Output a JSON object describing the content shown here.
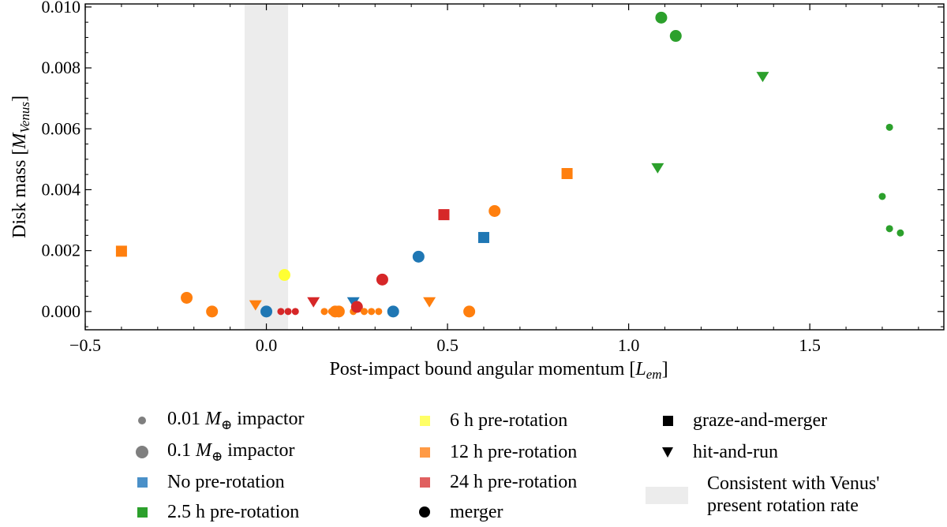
{
  "chart_data": {
    "type": "scatter",
    "title": "",
    "xlabel": "Post-impact bound angular momentum [",
    "xlabel_symbol": "L",
    "xlabel_sub": "em",
    "xlabel_end": "]",
    "ylabel": "Disk mass [",
    "ylabel_symbol": "M",
    "ylabel_sub": "Venus",
    "ylabel_end": "]",
    "xlim": [
      -0.5,
      1.87
    ],
    "ylim": [
      -0.0006,
      0.0101
    ],
    "xticks": [
      -0.5,
      0.0,
      0.5,
      1.0,
      1.5
    ],
    "xtick_labels": [
      "−0.5",
      "0.0",
      "0.5",
      "1.0",
      "1.5"
    ],
    "yticks": [
      0.0,
      0.002,
      0.004,
      0.006,
      0.008,
      0.01
    ],
    "ytick_labels": [
      "0.000",
      "0.002",
      "0.004",
      "0.006",
      "0.008",
      "0.010"
    ],
    "shaded_band": {
      "x_range": [
        -0.06,
        0.06
      ],
      "label": "Consistent with Venus' present rotation rate"
    },
    "colors": {
      "none": "#1f77b4",
      "2.5h": "#2ca02c",
      "6h": "#ffff33",
      "12h": "#ff7f0e",
      "24h": "#d62728"
    },
    "points": [
      {
        "x": -0.4,
        "y": 0.00198,
        "rot": "12h",
        "shape": "square",
        "size": "large"
      },
      {
        "x": -0.22,
        "y": 0.00045,
        "rot": "12h",
        "shape": "circle",
        "size": "large"
      },
      {
        "x": -0.15,
        "y": 0.0,
        "rot": "12h",
        "shape": "circle",
        "size": "large"
      },
      {
        "x": -0.03,
        "y": 0.0002,
        "rot": "12h",
        "shape": "triangle",
        "size": "large"
      },
      {
        "x": 0.0,
        "y": 0.0,
        "rot": "none",
        "shape": "circle",
        "size": "large"
      },
      {
        "x": 0.05,
        "y": 0.0012,
        "rot": "6h",
        "shape": "circle",
        "size": "large"
      },
      {
        "x": 0.04,
        "y": 0.0,
        "rot": "24h",
        "shape": "circle",
        "size": "small"
      },
      {
        "x": 0.06,
        "y": 0.0,
        "rot": "24h",
        "shape": "circle",
        "size": "small"
      },
      {
        "x": 0.08,
        "y": 0.0,
        "rot": "24h",
        "shape": "circle",
        "size": "small"
      },
      {
        "x": 0.13,
        "y": 0.0003,
        "rot": "24h",
        "shape": "triangle",
        "size": "large"
      },
      {
        "x": 0.16,
        "y": 0.0,
        "rot": "12h",
        "shape": "circle",
        "size": "small"
      },
      {
        "x": 0.18,
        "y": 0.0,
        "rot": "12h",
        "shape": "circle",
        "size": "small"
      },
      {
        "x": 0.19,
        "y": 0.0,
        "rot": "12h",
        "shape": "circle",
        "size": "large"
      },
      {
        "x": 0.2,
        "y": 0.0,
        "rot": "12h",
        "shape": "circle",
        "size": "large"
      },
      {
        "x": 0.24,
        "y": 0.0003,
        "rot": "none",
        "shape": "triangle",
        "size": "large"
      },
      {
        "x": 0.24,
        "y": 0.0,
        "rot": "12h",
        "shape": "circle",
        "size": "small"
      },
      {
        "x": 0.25,
        "y": 0.00015,
        "rot": "24h",
        "shape": "circle",
        "size": "large"
      },
      {
        "x": 0.27,
        "y": 0.0,
        "rot": "12h",
        "shape": "circle",
        "size": "small"
      },
      {
        "x": 0.29,
        "y": 0.0,
        "rot": "12h",
        "shape": "circle",
        "size": "small"
      },
      {
        "x": 0.31,
        "y": 0.0,
        "rot": "12h",
        "shape": "circle",
        "size": "small"
      },
      {
        "x": 0.32,
        "y": 0.00105,
        "rot": "24h",
        "shape": "circle",
        "size": "large"
      },
      {
        "x": 0.35,
        "y": 0.0,
        "rot": "none",
        "shape": "circle",
        "size": "large"
      },
      {
        "x": 0.42,
        "y": 0.0018,
        "rot": "none",
        "shape": "circle",
        "size": "large"
      },
      {
        "x": 0.45,
        "y": 0.0003,
        "rot": "12h",
        "shape": "triangle",
        "size": "large"
      },
      {
        "x": 0.49,
        "y": 0.00318,
        "rot": "24h",
        "shape": "square",
        "size": "large"
      },
      {
        "x": 0.56,
        "y": 0.0,
        "rot": "12h",
        "shape": "circle",
        "size": "large"
      },
      {
        "x": 0.6,
        "y": 0.00243,
        "rot": "none",
        "shape": "square",
        "size": "large"
      },
      {
        "x": 0.63,
        "y": 0.0033,
        "rot": "12h",
        "shape": "circle",
        "size": "large"
      },
      {
        "x": 0.83,
        "y": 0.00453,
        "rot": "12h",
        "shape": "square",
        "size": "large"
      },
      {
        "x": 1.08,
        "y": 0.0047,
        "rot": "2.5h",
        "shape": "triangle",
        "size": "large"
      },
      {
        "x": 1.09,
        "y": 0.00965,
        "rot": "2.5h",
        "shape": "circle",
        "size": "large"
      },
      {
        "x": 1.13,
        "y": 0.00905,
        "rot": "2.5h",
        "shape": "circle",
        "size": "large"
      },
      {
        "x": 1.37,
        "y": 0.0077,
        "rot": "2.5h",
        "shape": "triangle",
        "size": "large"
      },
      {
        "x": 1.7,
        "y": 0.00378,
        "rot": "2.5h",
        "shape": "circle",
        "size": "small"
      },
      {
        "x": 1.72,
        "y": 0.00605,
        "rot": "2.5h",
        "shape": "circle",
        "size": "small"
      },
      {
        "x": 1.72,
        "y": 0.00272,
        "rot": "2.5h",
        "shape": "circle",
        "size": "small"
      },
      {
        "x": 1.75,
        "y": 0.00258,
        "rot": "2.5h",
        "shape": "circle",
        "size": "small"
      }
    ]
  },
  "legend": {
    "small_impactor_pre": "0.01 ",
    "small_impactor_sym": "M",
    "small_impactor_sub": "⊕",
    "small_impactor_post": " impactor",
    "large_impactor_pre": "0.1 ",
    "large_impactor_sym": "M",
    "large_impactor_sub": "⊕",
    "large_impactor_post": " impactor",
    "no_rotation": "No pre-rotation",
    "rot_2_5h": "2.5 h pre-rotation",
    "rot_6h": "6 h pre-rotation",
    "rot_12h": "12 h pre-rotation",
    "rot_24h": "24 h pre-rotation",
    "merger": "merger",
    "graze_and_merger": "graze-and-merger",
    "hit_and_run": "hit-and-run",
    "band_line1": "Consistent with Venus'",
    "band_line2": " present rotation rate"
  }
}
